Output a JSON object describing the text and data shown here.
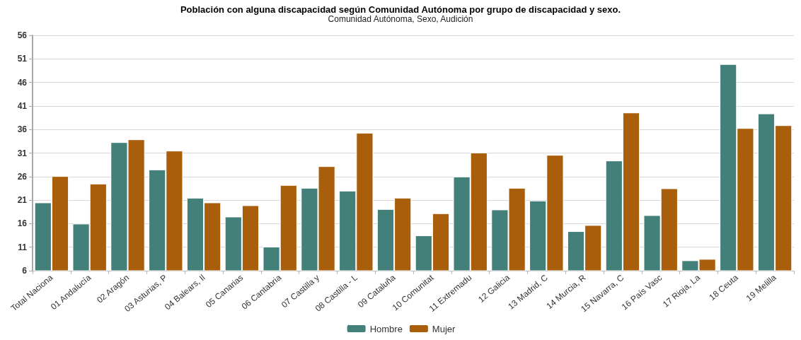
{
  "chart_data": {
    "type": "bar",
    "title": "Población con alguna discapacidad según Comunidad Autónoma por grupo de discapacidad y sexo.",
    "subtitle": "Comunidad Autónoma, Sexo, Audición",
    "categories": [
      "Total Naciona",
      "01 Andalucía",
      "02 Aragón",
      "03 Asturias, P",
      "04 Balears, Il",
      "05 Canarias",
      "06 Cantabria",
      "07 Castilla y",
      "08 Castilla - L",
      "09 Cataluña",
      "10 Comunitat",
      "11 Extremadu",
      "12 Galicia",
      "13 Madrid, C",
      "14 Murcia, R",
      "15 Navarra, C",
      "16 País Vasc",
      "17 Rioja, La",
      "18 Ceuta",
      "19 Melilla"
    ],
    "series": [
      {
        "name": "Hombre",
        "color": "#43807a",
        "values": [
          20.5,
          16.0,
          33.3,
          27.5,
          21.5,
          17.5,
          11.1,
          23.6,
          23.0,
          19.1,
          13.5,
          26.0,
          19.0,
          20.9,
          14.4,
          29.4,
          17.8,
          8.2,
          49.9,
          39.4
        ]
      },
      {
        "name": "Mujer",
        "color": "#a95e0c",
        "values": [
          26.1,
          24.5,
          33.9,
          31.5,
          20.5,
          19.9,
          24.2,
          28.2,
          35.3,
          21.5,
          18.2,
          31.1,
          23.6,
          30.6,
          15.7,
          39.6,
          23.5,
          8.5,
          36.3,
          36.9
        ]
      }
    ],
    "ylim": [
      6,
      56
    ],
    "yticks": [
      6,
      11,
      16,
      21,
      26,
      31,
      36,
      41,
      46,
      51,
      56
    ],
    "grid": "y",
    "legend": "bottom"
  }
}
